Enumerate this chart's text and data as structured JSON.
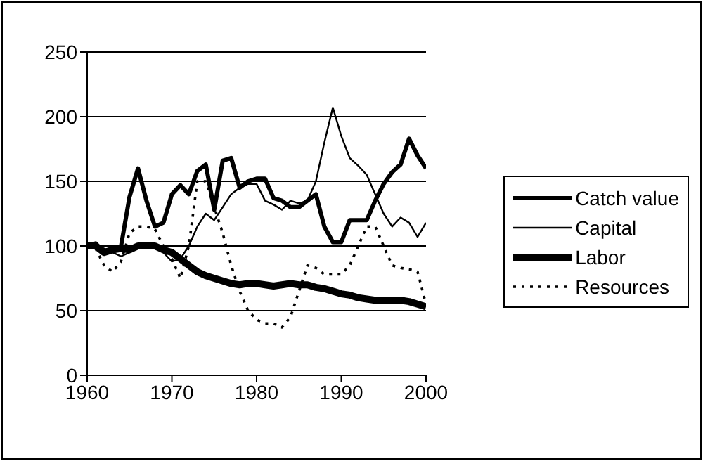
{
  "chart_data": {
    "type": "line",
    "x": [
      1960,
      1961,
      1962,
      1963,
      1964,
      1965,
      1966,
      1967,
      1968,
      1969,
      1970,
      1971,
      1972,
      1973,
      1974,
      1975,
      1976,
      1977,
      1978,
      1979,
      1980,
      1981,
      1982,
      1983,
      1984,
      1985,
      1986,
      1987,
      1988,
      1989,
      1990,
      1991,
      1992,
      1993,
      1994,
      1995,
      1996,
      1997,
      1998,
      1999,
      2000
    ],
    "series": [
      {
        "name": "Catch value",
        "color": "#000000",
        "line_style": "solid",
        "values": [
          100,
          102,
          95,
          97,
          100,
          138,
          160,
          135,
          115,
          118,
          140,
          147,
          140,
          158,
          163,
          128,
          166,
          168,
          145,
          150,
          152,
          152,
          137,
          135,
          130,
          130,
          135,
          140,
          115,
          103,
          103,
          120,
          120,
          120,
          135,
          148,
          157,
          163,
          183,
          170,
          160
        ]
      },
      {
        "name": "Capital",
        "color": "#000000",
        "line_style": "solid",
        "values": [
          100,
          100,
          98,
          95,
          92,
          95,
          100,
          100,
          100,
          95,
          88,
          90,
          100,
          115,
          125,
          120,
          130,
          140,
          145,
          148,
          148,
          135,
          132,
          128,
          135,
          133,
          135,
          150,
          180,
          207,
          185,
          168,
          162,
          155,
          140,
          125,
          115,
          122,
          118,
          107,
          118
        ]
      },
      {
        "name": "Labor",
        "color": "#000000",
        "line_style": "solid",
        "values": [
          100,
          100,
          95,
          97,
          98,
          97,
          100,
          100,
          100,
          97,
          95,
          90,
          85,
          80,
          77,
          75,
          73,
          71,
          70,
          71,
          71,
          70,
          69,
          70,
          71,
          70,
          70,
          68,
          67,
          65,
          63,
          62,
          60,
          59,
          58,
          58,
          58,
          58,
          57,
          55,
          53
        ]
      },
      {
        "name": "Resources",
        "color": "#000000",
        "line_style": "dotted",
        "values": [
          100,
          98,
          85,
          80,
          88,
          110,
          115,
          115,
          113,
          100,
          90,
          75,
          100,
          150,
          150,
          130,
          110,
          85,
          65,
          50,
          43,
          40,
          40,
          37,
          45,
          65,
          85,
          83,
          78,
          78,
          78,
          85,
          100,
          115,
          115,
          100,
          85,
          83,
          82,
          80,
          55
        ]
      }
    ],
    "xlim": [
      1960,
      2000
    ],
    "xticks": [
      1960,
      1970,
      1980,
      1990,
      2000
    ],
    "ylim": [
      0,
      250
    ],
    "yticks": [
      0,
      50,
      100,
      150,
      200,
      250
    ],
    "grid": "y",
    "legend": "right",
    "marker": "none"
  }
}
